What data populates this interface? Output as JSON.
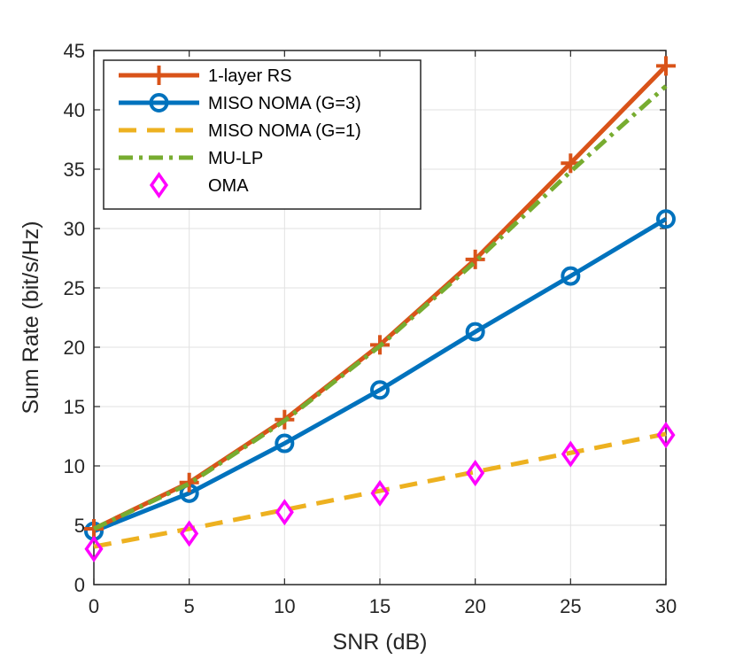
{
  "chart_data": {
    "type": "line",
    "title": "",
    "xlabel": "SNR (dB)",
    "ylabel": "Sum Rate (bit/s/Hz)",
    "xlim": [
      0,
      30
    ],
    "ylim": [
      0,
      45
    ],
    "xticks": [
      0,
      5,
      10,
      15,
      20,
      25,
      30
    ],
    "yticks": [
      0,
      5,
      10,
      15,
      20,
      25,
      30,
      35,
      40,
      45
    ],
    "grid": true,
    "legend_position": "top-left",
    "x": [
      0,
      5,
      10,
      15,
      20,
      25,
      30
    ],
    "series": [
      {
        "name": "1-layer RS",
        "color": "#D95319",
        "style": "solid",
        "marker": "plus",
        "values": [
          4.7,
          8.6,
          13.9,
          20.2,
          27.4,
          35.5,
          43.7
        ]
      },
      {
        "name": "MISO NOMA (G=3)",
        "color": "#0072BD",
        "style": "solid",
        "marker": "circle",
        "values": [
          4.5,
          7.7,
          11.9,
          16.4,
          21.3,
          26.0,
          30.8
        ]
      },
      {
        "name": "MISO NOMA (G=1)",
        "color": "#EDB120",
        "style": "dashed",
        "marker": "none",
        "values": [
          3.2,
          4.7,
          6.3,
          7.9,
          9.5,
          11.1,
          12.7
        ]
      },
      {
        "name": "MU-LP",
        "color": "#77AC30",
        "style": "dashdot",
        "marker": "none",
        "values": [
          4.7,
          8.5,
          13.8,
          20.1,
          27.2,
          34.8,
          42.0
        ]
      },
      {
        "name": "OMA",
        "color": "#FF00FF",
        "style": "none",
        "marker": "diamond",
        "values": [
          3.0,
          4.3,
          6.1,
          7.7,
          9.4,
          11.0,
          12.6
        ]
      }
    ]
  }
}
